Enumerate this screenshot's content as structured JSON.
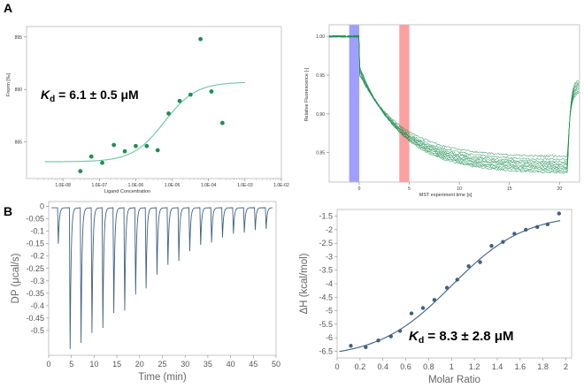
{
  "panel_labels": {
    "a": "A",
    "b": "B"
  },
  "colors": {
    "mst_fit": "#6cc5a5",
    "mst_point": "#1f8f52",
    "trace": "#1f8f52",
    "cold_region": "#7f7fff",
    "hot_region": "#ff8080",
    "itc_line": "#3f6183",
    "itc_point": "#3f6183",
    "frame": "#b9b9b9"
  },
  "chart_data": [
    {
      "id": "mst_dose_response",
      "type": "scatter",
      "xlabel": "Ligand Concentration",
      "ylabel": "Fnorm [‰]",
      "xscale": "log",
      "xlim": [
        1e-09,
        0.01
      ],
      "ylim": [
        881.5,
        896
      ],
      "xticks": [
        1e-08,
        1e-07,
        1e-06,
        1e-05,
        0.0001,
        0.001,
        0.01
      ],
      "xtick_labels": [
        "1.0E-08",
        "1.0E-07",
        "1.0E-06",
        "1.0E-05",
        "1.0E-04",
        "1.0E-03",
        "1.0E-02"
      ],
      "yticks": [
        885,
        890,
        895
      ],
      "ytick_labels": [
        "885",
        "890",
        "895"
      ],
      "points": [
        {
          "x": 3e-08,
          "y": 882.2
        },
        {
          "x": 6e-08,
          "y": 883.6
        },
        {
          "x": 1.2e-07,
          "y": 883.0
        },
        {
          "x": 2.5e-07,
          "y": 884.7
        },
        {
          "x": 5e-07,
          "y": 884.1
        },
        {
          "x": 1e-06,
          "y": 884.6
        },
        {
          "x": 2e-06,
          "y": 884.6
        },
        {
          "x": 4e-06,
          "y": 884.2
        },
        {
          "x": 8e-06,
          "y": 887.7
        },
        {
          "x": 1.6e-05,
          "y": 888.9
        },
        {
          "x": 3.2e-05,
          "y": 889.5
        },
        {
          "x": 6e-05,
          "y": 894.8
        },
        {
          "x": 0.00012,
          "y": 889.8
        },
        {
          "x": 0.00024,
          "y": 886.8
        }
      ],
      "fit": {
        "bottom": 883.1,
        "top": 890.7,
        "kd": 6.1e-06
      },
      "annotation": {
        "k": "K",
        "sub": "d",
        "text": " = 6.1 ± 0.5 μM"
      }
    },
    {
      "id": "mst_traces",
      "type": "line",
      "xlabel": "MST experiment time [s]",
      "ylabel": "Relative Fluorescence [-]",
      "xlim": [
        -3,
        22
      ],
      "ylim": [
        0.812,
        1.015
      ],
      "xticks": [
        0,
        5,
        10,
        15,
        20
      ],
      "xtick_labels": [
        "0",
        "5",
        "10",
        "15",
        "20"
      ],
      "yticks": [
        0.85,
        0.9,
        0.95,
        1.0
      ],
      "ytick_labels": [
        "0.85",
        "0.90",
        "0.95",
        "1.00"
      ],
      "cold_region": [
        -1,
        0
      ],
      "hot_region": [
        4,
        5
      ],
      "laser_on": 0,
      "laser_off": 20.8,
      "trace_end_values": [
        0.824,
        0.826,
        0.828,
        0.83,
        0.832,
        0.834,
        0.836,
        0.838,
        0.841,
        0.845
      ]
    },
    {
      "id": "itc_thermogram",
      "type": "line",
      "xlabel": "Time (min)",
      "ylabel": "DP (μcal/s)",
      "xlim": [
        0,
        50
      ],
      "ylim": [
        -0.6,
        0.02
      ],
      "xticks": [
        0,
        5,
        10,
        15,
        20,
        25,
        30,
        35,
        40,
        45,
        50
      ],
      "xtick_labels": [
        "0",
        "5",
        "10",
        "15",
        "20",
        "25",
        "30",
        "35",
        "40",
        "45",
        "50"
      ],
      "yticks": [
        0,
        -0.05,
        -0.1,
        -0.15,
        -0.2,
        -0.25,
        -0.3,
        -0.35,
        -0.4,
        -0.45,
        -0.5
      ],
      "ytick_labels": [
        "0",
        "-0.05",
        "-0.1",
        "-0.15",
        "-0.2",
        "-0.25",
        "-0.3",
        "-0.35",
        "-0.4",
        "-0.45",
        "-0.5"
      ],
      "baseline": -0.005,
      "injections": [
        {
          "t": 2.0,
          "peak": -0.15
        },
        {
          "t": 4.6,
          "peak": -0.575
        },
        {
          "t": 7.0,
          "peak": -0.55
        },
        {
          "t": 9.4,
          "peak": -0.51
        },
        {
          "t": 11.8,
          "peak": -0.49
        },
        {
          "t": 14.2,
          "peak": -0.43
        },
        {
          "t": 16.6,
          "peak": -0.42
        },
        {
          "t": 19.0,
          "peak": -0.355
        },
        {
          "t": 21.3,
          "peak": -0.33
        },
        {
          "t": 23.7,
          "peak": -0.275
        },
        {
          "t": 26.1,
          "peak": -0.235
        },
        {
          "t": 28.5,
          "peak": -0.22
        },
        {
          "t": 30.9,
          "peak": -0.18
        },
        {
          "t": 33.3,
          "peak": -0.155
        },
        {
          "t": 35.7,
          "peak": -0.145
        },
        {
          "t": 38.1,
          "peak": -0.125
        },
        {
          "t": 40.5,
          "peak": -0.11
        },
        {
          "t": 42.9,
          "peak": -0.105
        },
        {
          "t": 45.3,
          "peak": -0.095
        },
        {
          "t": 47.7,
          "peak": -0.09
        }
      ]
    },
    {
      "id": "itc_binding_isotherm",
      "type": "scatter",
      "xlabel": "Molar Ratio",
      "ylabel": "ΔH (kcal/mol)",
      "xlim": [
        0,
        2.05
      ],
      "ylim": [
        -6.75,
        -1.25
      ],
      "xticks": [
        0,
        0.2,
        0.4,
        0.6,
        0.8,
        1,
        1.2,
        1.4,
        1.6,
        1.8,
        2
      ],
      "xtick_labels": [
        "0",
        "0.2",
        "0.4",
        "0.6",
        "0.8",
        "1",
        "1.2",
        "1.4",
        "1.6",
        "1.8",
        "2"
      ],
      "yticks": [
        -1.5,
        -2,
        -2.5,
        -3,
        -3.5,
        -4,
        -4.5,
        -5,
        -5.5,
        -6,
        -6.5
      ],
      "ytick_labels": [
        "-1.5",
        "-2",
        "-2.5",
        "-3",
        "-3.5",
        "-4",
        "-4.5",
        "-5",
        "-5.5",
        "-6",
        "-6.5"
      ],
      "points": [
        {
          "x": 0.12,
          "y": -6.3
        },
        {
          "x": 0.25,
          "y": -6.35
        },
        {
          "x": 0.36,
          "y": -6.1
        },
        {
          "x": 0.47,
          "y": -5.95
        },
        {
          "x": 0.55,
          "y": -5.75
        },
        {
          "x": 0.65,
          "y": -5.1
        },
        {
          "x": 0.75,
          "y": -4.9
        },
        {
          "x": 0.85,
          "y": -4.6
        },
        {
          "x": 0.96,
          "y": -4.15
        },
        {
          "x": 1.05,
          "y": -3.85
        },
        {
          "x": 1.15,
          "y": -3.35
        },
        {
          "x": 1.25,
          "y": -3.2
        },
        {
          "x": 1.35,
          "y": -2.6
        },
        {
          "x": 1.45,
          "y": -2.45
        },
        {
          "x": 1.55,
          "y": -2.15
        },
        {
          "x": 1.65,
          "y": -2.0
        },
        {
          "x": 1.75,
          "y": -1.9
        },
        {
          "x": 1.84,
          "y": -1.8
        },
        {
          "x": 1.94,
          "y": -1.4
        }
      ],
      "fit": {
        "bottom": -6.75,
        "top": -1.4,
        "center": 1.0,
        "width": 0.32
      },
      "annotation": {
        "k": "K",
        "sub": "d",
        "text": " = 8.3 ± 2.8 μM"
      }
    }
  ]
}
